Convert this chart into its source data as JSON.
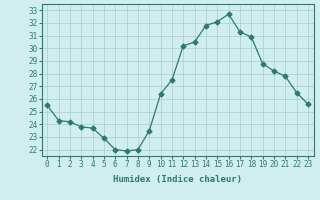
{
  "x": [
    0,
    1,
    2,
    3,
    4,
    5,
    6,
    7,
    8,
    9,
    10,
    11,
    12,
    13,
    14,
    15,
    16,
    17,
    18,
    19,
    20,
    21,
    22,
    23
  ],
  "y": [
    25.5,
    24.3,
    24.2,
    23.8,
    23.7,
    22.9,
    22.0,
    21.9,
    22.0,
    23.5,
    26.4,
    27.5,
    30.2,
    30.5,
    31.8,
    32.1,
    32.7,
    31.3,
    30.9,
    28.8,
    28.2,
    27.8,
    26.5,
    25.6
  ],
  "line_color": "#2d7b6e",
  "marker": "D",
  "marker_size": 2.5,
  "bg_color": "#d0eeee",
  "grid_color": "#a8cccc",
  "xlabel": "Humidex (Indice chaleur)",
  "xlim": [
    -0.5,
    23.5
  ],
  "ylim": [
    21.5,
    33.5
  ],
  "yticks": [
    22,
    23,
    24,
    25,
    26,
    27,
    28,
    29,
    30,
    31,
    32,
    33
  ],
  "xticks": [
    0,
    1,
    2,
    3,
    4,
    5,
    6,
    7,
    8,
    9,
    10,
    11,
    12,
    13,
    14,
    15,
    16,
    17,
    18,
    19,
    20,
    21,
    22,
    23
  ],
  "tick_color": "#2d7b6e",
  "axis_color": "#2d7b6e",
  "label_color": "#2d7b6e",
  "xlabel_fontsize": 6.5,
  "tick_fontsize": 5.5
}
